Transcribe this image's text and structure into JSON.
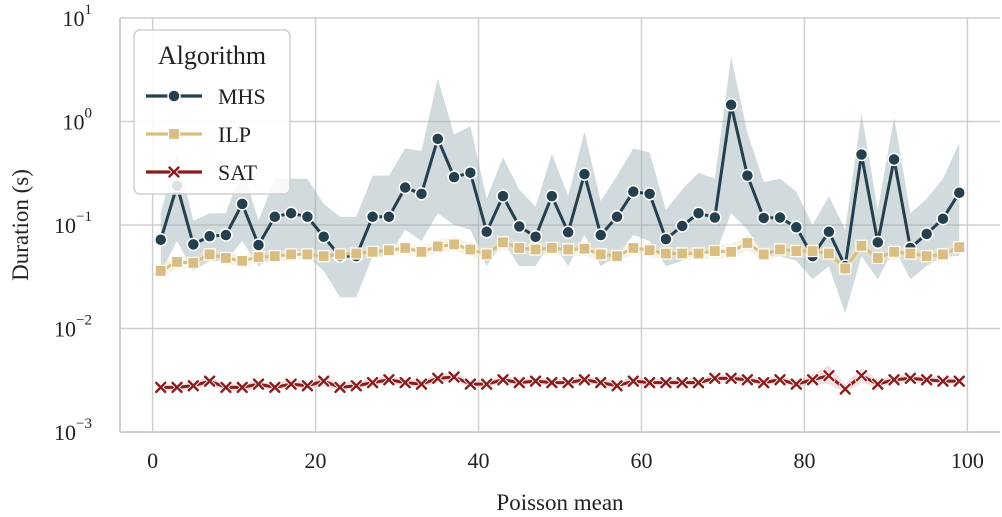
{
  "chart_data": {
    "type": "line",
    "xlabel": "Poisson mean",
    "ylabel": "Duration (s)",
    "yscale": "log",
    "xlim": [
      -4,
      104
    ],
    "ylim": [
      0.001,
      10
    ],
    "x_ticks": [
      "0",
      "20",
      "40",
      "60",
      "80",
      "100"
    ],
    "y_ticks": [
      {
        "base": "10",
        "exp": "1"
      },
      {
        "base": "10",
        "exp": "0"
      },
      {
        "base": "10",
        "exp": "−1"
      },
      {
        "base": "10",
        "exp": "−2"
      },
      {
        "base": "10",
        "exp": "−3"
      }
    ],
    "grid": true,
    "legend": {
      "title": "Algorithm",
      "placement": "top-left"
    },
    "x": [
      1,
      3,
      5,
      7,
      9,
      11,
      13,
      15,
      17,
      19,
      21,
      23,
      25,
      27,
      29,
      31,
      33,
      35,
      37,
      39,
      41,
      43,
      45,
      47,
      49,
      51,
      53,
      55,
      57,
      59,
      61,
      63,
      65,
      67,
      69,
      71,
      73,
      75,
      77,
      79,
      81,
      83,
      85,
      87,
      89,
      91,
      93,
      95,
      97,
      99
    ],
    "series": [
      {
        "name": "MHS",
        "color": "#243f4d",
        "band_color": "#9aaeb3",
        "marker": "circle",
        "values": [
          0.072,
          0.24,
          0.065,
          0.078,
          0.08,
          0.16,
          0.064,
          0.12,
          0.13,
          0.12,
          0.077,
          0.05,
          0.05,
          0.12,
          0.12,
          0.23,
          0.2,
          0.68,
          0.29,
          0.32,
          0.086,
          0.19,
          0.097,
          0.077,
          0.19,
          0.085,
          0.31,
          0.08,
          0.12,
          0.21,
          0.2,
          0.073,
          0.098,
          0.13,
          0.118,
          1.45,
          0.3,
          0.117,
          0.118,
          0.095,
          0.05,
          0.086,
          0.04,
          0.48,
          0.068,
          0.43,
          0.06,
          0.082,
          0.115,
          0.205
        ],
        "ci_low": [
          0.035,
          0.07,
          0.036,
          0.045,
          0.045,
          0.07,
          0.04,
          0.05,
          0.06,
          0.05,
          0.036,
          0.02,
          0.02,
          0.05,
          0.05,
          0.09,
          0.07,
          0.13,
          0.1,
          0.09,
          0.04,
          0.07,
          0.04,
          0.04,
          0.07,
          0.04,
          0.08,
          0.04,
          0.05,
          0.08,
          0.07,
          0.04,
          0.045,
          0.06,
          0.05,
          0.13,
          0.09,
          0.05,
          0.05,
          0.045,
          0.03,
          0.04,
          0.014,
          0.05,
          0.03,
          0.06,
          0.03,
          0.04,
          0.05,
          0.05
        ],
        "ci_high": [
          0.13,
          0.5,
          0.11,
          0.13,
          0.13,
          0.36,
          0.11,
          0.28,
          0.28,
          0.28,
          0.16,
          0.12,
          0.12,
          0.3,
          0.3,
          0.55,
          0.52,
          2.6,
          0.75,
          0.9,
          0.18,
          0.45,
          0.22,
          0.15,
          0.49,
          0.19,
          0.8,
          0.17,
          0.3,
          0.55,
          0.5,
          0.14,
          0.22,
          0.32,
          0.28,
          4.2,
          0.78,
          0.26,
          0.28,
          0.21,
          0.1,
          0.19,
          0.09,
          1.2,
          0.14,
          1.1,
          0.13,
          0.18,
          0.28,
          0.62
        ]
      },
      {
        "name": "ILP",
        "color": "#d9bd82",
        "band_color": "#efe2c2",
        "marker": "square",
        "values": [
          0.036,
          0.044,
          0.043,
          0.052,
          0.048,
          0.045,
          0.049,
          0.05,
          0.052,
          0.052,
          0.05,
          0.052,
          0.053,
          0.055,
          0.057,
          0.06,
          0.055,
          0.062,
          0.065,
          0.058,
          0.052,
          0.068,
          0.06,
          0.058,
          0.06,
          0.058,
          0.059,
          0.052,
          0.05,
          0.06,
          0.057,
          0.053,
          0.053,
          0.053,
          0.056,
          0.055,
          0.067,
          0.052,
          0.058,
          0.056,
          0.056,
          0.053,
          0.038,
          0.063,
          0.048,
          0.055,
          0.053,
          0.05,
          0.052,
          0.061
        ],
        "ci_low": [
          0.031,
          0.038,
          0.038,
          0.045,
          0.042,
          0.04,
          0.043,
          0.044,
          0.045,
          0.046,
          0.044,
          0.046,
          0.046,
          0.048,
          0.05,
          0.052,
          0.048,
          0.054,
          0.056,
          0.05,
          0.045,
          0.058,
          0.052,
          0.05,
          0.052,
          0.05,
          0.051,
          0.045,
          0.044,
          0.052,
          0.049,
          0.046,
          0.046,
          0.046,
          0.048,
          0.047,
          0.057,
          0.045,
          0.05,
          0.048,
          0.048,
          0.045,
          0.033,
          0.054,
          0.042,
          0.047,
          0.046,
          0.043,
          0.045,
          0.052
        ],
        "ci_high": [
          0.042,
          0.051,
          0.049,
          0.06,
          0.055,
          0.051,
          0.056,
          0.057,
          0.06,
          0.06,
          0.057,
          0.06,
          0.061,
          0.063,
          0.066,
          0.07,
          0.063,
          0.072,
          0.077,
          0.068,
          0.061,
          0.081,
          0.07,
          0.068,
          0.07,
          0.068,
          0.069,
          0.061,
          0.058,
          0.07,
          0.066,
          0.062,
          0.062,
          0.062,
          0.065,
          0.065,
          0.08,
          0.061,
          0.068,
          0.066,
          0.066,
          0.063,
          0.045,
          0.074,
          0.056,
          0.065,
          0.062,
          0.058,
          0.061,
          0.072
        ]
      },
      {
        "name": "SAT",
        "color": "#8b1c1c",
        "band_color": "#e8b4b8",
        "marker": "x",
        "values": [
          0.0027,
          0.0027,
          0.0028,
          0.0031,
          0.0027,
          0.0027,
          0.0029,
          0.0027,
          0.0029,
          0.0028,
          0.0031,
          0.0027,
          0.0028,
          0.003,
          0.0032,
          0.003,
          0.0029,
          0.0033,
          0.0034,
          0.0029,
          0.0029,
          0.0032,
          0.003,
          0.0031,
          0.003,
          0.003,
          0.0032,
          0.003,
          0.0028,
          0.0031,
          0.003,
          0.003,
          0.003,
          0.003,
          0.0033,
          0.0033,
          0.0032,
          0.003,
          0.0032,
          0.0029,
          0.0032,
          0.0035,
          0.0026,
          0.0035,
          0.0029,
          0.0032,
          0.0033,
          0.0032,
          0.0031,
          0.0031
        ],
        "ci_low": [
          0.0025,
          0.0025,
          0.0026,
          0.0028,
          0.0025,
          0.0025,
          0.0027,
          0.0025,
          0.0027,
          0.0026,
          0.0028,
          0.0025,
          0.0026,
          0.0028,
          0.003,
          0.0028,
          0.0027,
          0.003,
          0.0031,
          0.0027,
          0.0027,
          0.003,
          0.0028,
          0.0029,
          0.0028,
          0.0028,
          0.003,
          0.0028,
          0.0026,
          0.0029,
          0.0028,
          0.0028,
          0.0028,
          0.0028,
          0.003,
          0.003,
          0.003,
          0.0028,
          0.003,
          0.0027,
          0.0029,
          0.0029,
          0.0024,
          0.003,
          0.0027,
          0.003,
          0.003,
          0.003,
          0.0029,
          0.0029
        ],
        "ci_high": [
          0.0029,
          0.0029,
          0.0031,
          0.0034,
          0.0029,
          0.003,
          0.0031,
          0.003,
          0.0032,
          0.0031,
          0.0034,
          0.003,
          0.0031,
          0.0033,
          0.0035,
          0.0033,
          0.0032,
          0.0036,
          0.0038,
          0.0032,
          0.0032,
          0.0035,
          0.0033,
          0.0034,
          0.0033,
          0.0033,
          0.0035,
          0.0033,
          0.0031,
          0.0034,
          0.0033,
          0.0033,
          0.0033,
          0.0033,
          0.0036,
          0.0036,
          0.0035,
          0.0033,
          0.0035,
          0.0032,
          0.0036,
          0.0044,
          0.0029,
          0.0041,
          0.0032,
          0.0035,
          0.0036,
          0.0035,
          0.0034,
          0.0034
        ]
      }
    ]
  }
}
